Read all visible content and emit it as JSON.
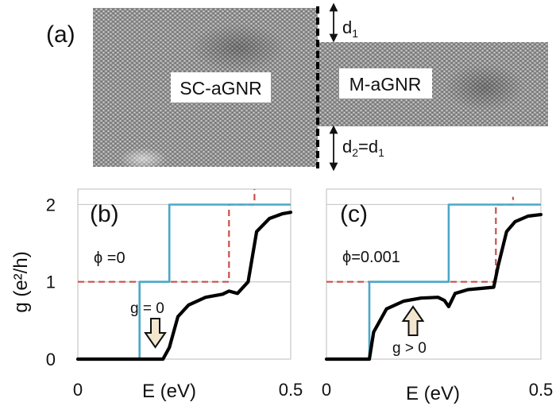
{
  "panel_a": {
    "label": "(a)",
    "left_ribbon": "SC-aGNR",
    "right_ribbon": "M-aGNR",
    "d_top": {
      "base": "d",
      "sub": "1"
    },
    "d_bottom": {
      "base": "d",
      "sub1": "2",
      "eq": "=d",
      "sub2": "1"
    }
  },
  "chart_data": [
    {
      "type": "line",
      "panel_label": "(b)",
      "annotation_phi": "ϕ =0",
      "annotation_g": "g = 0",
      "xlabel": "E (eV)",
      "ylabel": "g (e²/h)",
      "xlim": [
        0,
        0.5
      ],
      "ylim": [
        0,
        2.2
      ],
      "xticks": [
        "0",
        "0.5"
      ],
      "yticks": [
        "0",
        "1",
        "2"
      ],
      "colors": {
        "solid": "#4aa8c8",
        "dashed": "#c8504a",
        "thick": "#000000"
      },
      "series": [
        {
          "style": "solid",
          "x": [
            0,
            0.145,
            0.145,
            0.215,
            0.215,
            0.5
          ],
          "y": [
            0,
            0,
            1,
            1,
            2,
            2
          ]
        },
        {
          "style": "dashed",
          "x": [
            0,
            0.215,
            0.215,
            0.355,
            0.355,
            0.415,
            0.415
          ],
          "y": [
            1,
            1,
            1,
            1,
            2,
            2,
            2.2
          ]
        },
        {
          "style": "thick",
          "x": [
            0,
            0.2,
            0.215,
            0.235,
            0.26,
            0.3,
            0.34,
            0.355,
            0.375,
            0.4,
            0.42,
            0.45,
            0.48,
            0.5
          ],
          "y": [
            0,
            0,
            0.15,
            0.55,
            0.7,
            0.8,
            0.84,
            0.88,
            0.85,
            1.0,
            1.65,
            1.82,
            1.88,
            1.9
          ]
        }
      ]
    },
    {
      "type": "line",
      "panel_label": "(c)",
      "annotation_phi": "ϕ=0.001",
      "annotation_g": "g > 0",
      "xlabel": "E (eV)",
      "xlim": [
        0,
        0.5
      ],
      "ylim": [
        0,
        2.2
      ],
      "xticks": [
        "0",
        "0.5"
      ],
      "colors": {
        "solid": "#4aa8c8",
        "dashed": "#c8504a",
        "thick": "#000000"
      },
      "series": [
        {
          "style": "solid",
          "x": [
            0,
            0.1,
            0.1,
            0.285,
            0.285,
            0.5
          ],
          "y": [
            0,
            0,
            1,
            1,
            2,
            2
          ]
        },
        {
          "style": "dashed",
          "x": [
            0,
            0.1,
            0.1,
            0.395,
            0.395,
            0.435,
            0.435
          ],
          "y": [
            1,
            1,
            1,
            1,
            2,
            2,
            2.1
          ]
        },
        {
          "style": "thick",
          "x": [
            0,
            0.1,
            0.11,
            0.14,
            0.18,
            0.22,
            0.26,
            0.275,
            0.285,
            0.3,
            0.33,
            0.37,
            0.39,
            0.4,
            0.42,
            0.44,
            0.47,
            0.5
          ],
          "y": [
            0,
            0,
            0.35,
            0.65,
            0.75,
            0.79,
            0.8,
            0.76,
            0.68,
            0.85,
            0.9,
            0.92,
            0.93,
            1.2,
            1.65,
            1.78,
            1.85,
            1.87
          ]
        }
      ]
    }
  ]
}
